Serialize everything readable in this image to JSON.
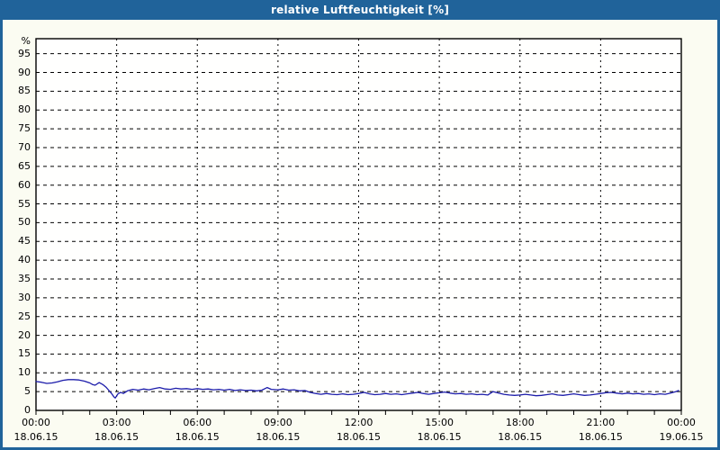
{
  "window": {
    "title": "relative Luftfeuchtigkeit [%]"
  },
  "colors": {
    "titlebar": "#20639a",
    "page_border": "#20639a",
    "page_bg": "#fbfcf2",
    "plot_bg": "#fffffe",
    "plot_border": "#000000",
    "grid": "#000000",
    "series_line": "#1c1caa",
    "title_text": "#ffffff",
    "axis_text": "#000000"
  },
  "chart_data": {
    "type": "line",
    "title": "relative Luftfeuchtigkeit [%]",
    "xlabel": "",
    "ylabel": "%",
    "ylim": [
      0,
      99
    ],
    "xlim_hours": [
      0,
      24
    ],
    "grid": "dashed",
    "legend_position": "none",
    "y_ticks": [
      95,
      90,
      85,
      80,
      75,
      70,
      65,
      60,
      55,
      50,
      45,
      40,
      35,
      30,
      25,
      20,
      15,
      10,
      5,
      0
    ],
    "x_ticks": [
      {
        "hour": 0,
        "time": "00:00",
        "date": "18.06.15"
      },
      {
        "hour": 3,
        "time": "03:00",
        "date": "18.06.15"
      },
      {
        "hour": 6,
        "time": "06:00",
        "date": "18.06.15"
      },
      {
        "hour": 9,
        "time": "09:00",
        "date": "18.06.15"
      },
      {
        "hour": 12,
        "time": "12:00",
        "date": "18.06.15"
      },
      {
        "hour": 15,
        "time": "15:00",
        "date": "18.06.15"
      },
      {
        "hour": 18,
        "time": "18:00",
        "date": "18.06.15"
      },
      {
        "hour": 21,
        "time": "21:00",
        "date": "18.06.15"
      },
      {
        "hour": 24,
        "time": "00:00",
        "date": "19.06.15"
      }
    ],
    "minor_tick_every_hours": 1,
    "series": [
      {
        "name": "relative Luftfeuchtigkeit",
        "unit": "%",
        "color": "#1c1caa",
        "points": [
          [
            0.0,
            7.7
          ],
          [
            0.2,
            7.5
          ],
          [
            0.4,
            7.2
          ],
          [
            0.6,
            7.3
          ],
          [
            0.8,
            7.6
          ],
          [
            1.0,
            8.0
          ],
          [
            1.2,
            8.2
          ],
          [
            1.4,
            8.2
          ],
          [
            1.6,
            8.1
          ],
          [
            1.8,
            7.8
          ],
          [
            2.0,
            7.3
          ],
          [
            2.1,
            6.9
          ],
          [
            2.2,
            6.7
          ],
          [
            2.35,
            7.4
          ],
          [
            2.5,
            6.8
          ],
          [
            2.6,
            6.2
          ],
          [
            2.7,
            5.4
          ],
          [
            2.8,
            4.6
          ],
          [
            2.9,
            3.6
          ],
          [
            2.95,
            3.3
          ],
          [
            3.05,
            4.4
          ],
          [
            3.15,
            4.8
          ],
          [
            3.25,
            4.5
          ],
          [
            3.4,
            5.2
          ],
          [
            3.6,
            5.6
          ],
          [
            3.8,
            5.4
          ],
          [
            4.0,
            5.7
          ],
          [
            4.2,
            5.5
          ],
          [
            4.4,
            5.8
          ],
          [
            4.6,
            6.1
          ],
          [
            4.8,
            5.7
          ],
          [
            5.0,
            5.6
          ],
          [
            5.2,
            5.9
          ],
          [
            5.4,
            5.7
          ],
          [
            5.6,
            5.8
          ],
          [
            5.8,
            5.6
          ],
          [
            6.0,
            5.8
          ],
          [
            6.2,
            5.6
          ],
          [
            6.4,
            5.7
          ],
          [
            6.6,
            5.5
          ],
          [
            6.8,
            5.6
          ],
          [
            7.0,
            5.4
          ],
          [
            7.2,
            5.6
          ],
          [
            7.4,
            5.3
          ],
          [
            7.6,
            5.5
          ],
          [
            7.8,
            5.3
          ],
          [
            8.0,
            5.4
          ],
          [
            8.2,
            5.2
          ],
          [
            8.4,
            5.4
          ],
          [
            8.6,
            6.1
          ],
          [
            8.75,
            5.6
          ],
          [
            9.0,
            5.5
          ],
          [
            9.2,
            5.7
          ],
          [
            9.4,
            5.4
          ],
          [
            9.6,
            5.5
          ],
          [
            9.8,
            5.2
          ],
          [
            10.0,
            5.3
          ],
          [
            10.2,
            4.8
          ],
          [
            10.4,
            4.5
          ],
          [
            10.6,
            4.3
          ],
          [
            10.8,
            4.5
          ],
          [
            11.0,
            4.3
          ],
          [
            11.2,
            4.2
          ],
          [
            11.4,
            4.4
          ],
          [
            11.6,
            4.2
          ],
          [
            11.8,
            4.3
          ],
          [
            12.0,
            4.5
          ],
          [
            12.2,
            4.8
          ],
          [
            12.4,
            4.4
          ],
          [
            12.6,
            4.2
          ],
          [
            12.8,
            4.3
          ],
          [
            13.0,
            4.5
          ],
          [
            13.2,
            4.3
          ],
          [
            13.4,
            4.4
          ],
          [
            13.6,
            4.2
          ],
          [
            13.8,
            4.4
          ],
          [
            14.0,
            4.6
          ],
          [
            14.2,
            4.8
          ],
          [
            14.4,
            4.5
          ],
          [
            14.6,
            4.3
          ],
          [
            14.8,
            4.5
          ],
          [
            15.0,
            4.7
          ],
          [
            15.2,
            4.9
          ],
          [
            15.4,
            4.6
          ],
          [
            15.6,
            4.4
          ],
          [
            15.8,
            4.5
          ],
          [
            16.0,
            4.3
          ],
          [
            16.2,
            4.4
          ],
          [
            16.4,
            4.2
          ],
          [
            16.6,
            4.3
          ],
          [
            16.8,
            4.1
          ],
          [
            17.0,
            5.0
          ],
          [
            17.2,
            4.6
          ],
          [
            17.4,
            4.3
          ],
          [
            17.6,
            4.1
          ],
          [
            17.8,
            4.0
          ],
          [
            18.0,
            4.1
          ],
          [
            18.2,
            4.3
          ],
          [
            18.4,
            4.1
          ],
          [
            18.6,
            3.9
          ],
          [
            18.8,
            4.0
          ],
          [
            19.0,
            4.2
          ],
          [
            19.2,
            4.4
          ],
          [
            19.4,
            4.1
          ],
          [
            19.6,
            4.0
          ],
          [
            19.8,
            4.2
          ],
          [
            20.0,
            4.4
          ],
          [
            20.2,
            4.2
          ],
          [
            20.4,
            4.0
          ],
          [
            20.6,
            4.1
          ],
          [
            20.8,
            4.3
          ],
          [
            21.0,
            4.5
          ],
          [
            21.2,
            4.7
          ],
          [
            21.4,
            4.8
          ],
          [
            21.6,
            4.6
          ],
          [
            21.8,
            4.4
          ],
          [
            22.0,
            4.6
          ],
          [
            22.2,
            4.4
          ],
          [
            22.4,
            4.5
          ],
          [
            22.6,
            4.3
          ],
          [
            22.8,
            4.4
          ],
          [
            23.0,
            4.2
          ],
          [
            23.2,
            4.4
          ],
          [
            23.4,
            4.3
          ],
          [
            23.6,
            4.6
          ],
          [
            23.8,
            5.0
          ],
          [
            23.9,
            5.3
          ]
        ]
      }
    ]
  }
}
